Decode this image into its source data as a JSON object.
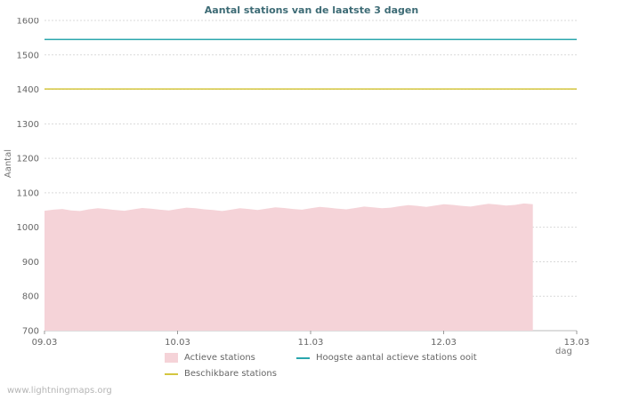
{
  "watermark": "www.lightningmaps.org",
  "legend": {
    "items": [
      {
        "label": "Actieve stations",
        "color": "#f5d3d8",
        "shape": "square"
      },
      {
        "label": "Beschikbare stations",
        "color": "#d4c63f",
        "shape": "line"
      },
      {
        "label": "Hoogste aantal actieve stations ooit",
        "color": "#2aa6ad",
        "shape": "line"
      }
    ]
  },
  "chart_data": {
    "type": "area",
    "title": "Aantal stations van de laatste 3 dagen",
    "xlabel": "dag",
    "ylabel": "Aantal",
    "ylim": [
      700,
      1600
    ],
    "ytick_step": 100,
    "xlim": [
      9,
      13
    ],
    "x_ticks": [
      {
        "value": 9,
        "label": "09.03"
      },
      {
        "value": 10,
        "label": "10.03"
      },
      {
        "value": 11,
        "label": "11.03"
      },
      {
        "value": 12,
        "label": "12.03"
      },
      {
        "value": 13,
        "label": "13.03"
      }
    ],
    "grid": "horizontal-dotted",
    "legend_position": "bottom",
    "series": [
      {
        "name": "Actieve stations",
        "type": "area",
        "color": "#f5d3d8",
        "x_start": 9.0,
        "x_end": 12.67,
        "values": [
          1048,
          1051,
          1053,
          1049,
          1047,
          1052,
          1055,
          1053,
          1050,
          1048,
          1052,
          1056,
          1054,
          1051,
          1049,
          1053,
          1057,
          1055,
          1052,
          1050,
          1047,
          1051,
          1055,
          1053,
          1050,
          1054,
          1058,
          1056,
          1053,
          1051,
          1055,
          1059,
          1057,
          1054,
          1052,
          1056,
          1060,
          1058,
          1055,
          1057,
          1061,
          1064,
          1062,
          1059,
          1063,
          1067,
          1065,
          1062,
          1060,
          1064,
          1068,
          1066,
          1063,
          1065,
          1069,
          1067
        ]
      },
      {
        "name": "Beschikbare stations",
        "type": "hline",
        "color": "#d4c63f",
        "value": 1401
      },
      {
        "name": "Hoogste aantal actieve stations ooit",
        "type": "hline",
        "color": "#2aa6ad",
        "value": 1545
      }
    ]
  }
}
